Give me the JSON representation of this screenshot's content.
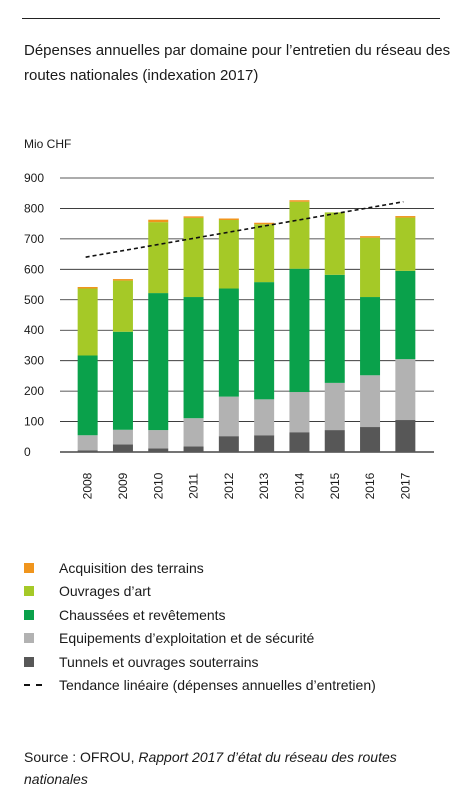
{
  "chart_data": {
    "type": "bar",
    "stacked": true,
    "title": "Dépenses annuelles par domaine pour l’entretien du réseau des routes nationales (indexation 2017)",
    "ylabel": "Mio CHF",
    "ylim": [
      0,
      900
    ],
    "yticks": [
      0,
      100,
      200,
      300,
      400,
      500,
      600,
      700,
      800,
      900
    ],
    "grid": true,
    "legend_position": "bottom",
    "categories": [
      "2008",
      "2009",
      "2010",
      "2011",
      "2012",
      "2013",
      "2014",
      "2015",
      "2016",
      "2017"
    ],
    "series": [
      {
        "name": "Tunnels et ouvrages souterrains",
        "color": "#575757",
        "values": [
          5,
          25,
          12,
          18,
          52,
          55,
          65,
          72,
          82,
          105
        ]
      },
      {
        "name": "Equipements d’exploitation et de sécurité",
        "color": "#b2b2b2",
        "values": [
          50,
          48,
          60,
          93,
          130,
          118,
          132,
          155,
          170,
          200
        ]
      },
      {
        "name": "Chaussées et revêtements",
        "color": "#0aa14b",
        "values": [
          262,
          322,
          450,
          398,
          355,
          385,
          405,
          355,
          257,
          290
        ]
      },
      {
        "name": "Ouvrages d’art",
        "color": "#a5c927",
        "values": [
          220,
          168,
          233,
          260,
          225,
          190,
          220,
          205,
          195,
          175
        ]
      },
      {
        "name": "Acquisition des terrains",
        "color": "#f0951d",
        "values": [
          5,
          5,
          8,
          5,
          5,
          5,
          5,
          0,
          5,
          5
        ]
      }
    ],
    "trend": {
      "name": "Tendance linéaire (dépenses annuelles d’entretien)",
      "start": 640,
      "end": 822
    }
  },
  "colors": {
    "grid": "#222222",
    "trend": "#111111"
  },
  "legend": [
    {
      "label": "Acquisition des terrains",
      "color": "#f0951d",
      "kind": "square"
    },
    {
      "label": "Ouvrages d’art",
      "color": "#a5c927",
      "kind": "square"
    },
    {
      "label": "Chaussées et revêtements",
      "color": "#0aa14b",
      "kind": "square"
    },
    {
      "label": "Equipements d’exploitation et de sécurité",
      "color": "#b2b2b2",
      "kind": "square"
    },
    {
      "label": "Tunnels et ouvrages souterrains",
      "color": "#575757",
      "kind": "square"
    },
    {
      "label": "Tendance linéaire (dépenses annuelles d’entretien)",
      "color": "#111111",
      "kind": "dash"
    }
  ],
  "source": {
    "prefix": "Source : OFROU, ",
    "publication": "Rapport 2017 d’état du réseau des routes nationales"
  }
}
